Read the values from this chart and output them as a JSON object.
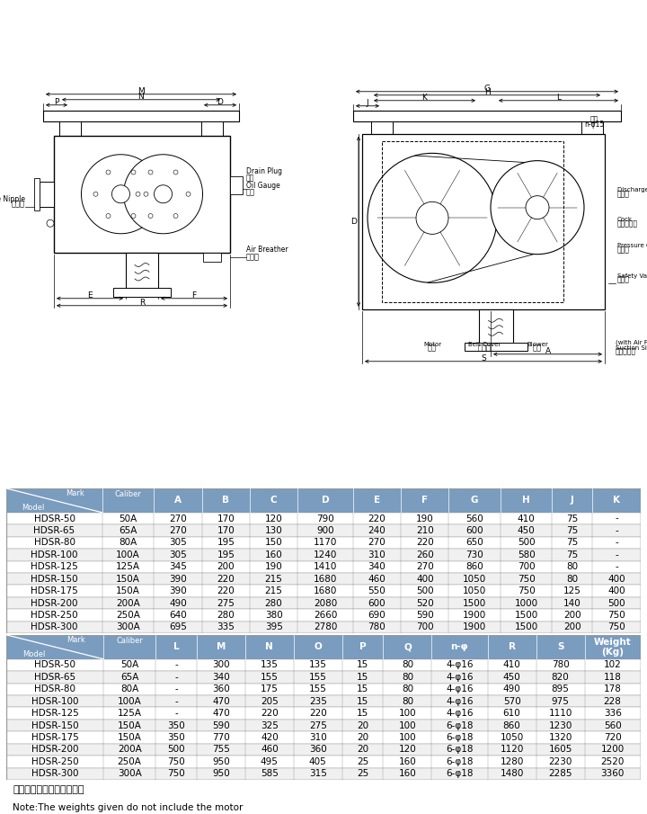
{
  "table1_data": [
    [
      "HDSR-50",
      "50A",
      "270",
      "170",
      "120",
      "790",
      "220",
      "190",
      "560",
      "410",
      "75",
      "-"
    ],
    [
      "HDSR-65",
      "65A",
      "270",
      "170",
      "130",
      "900",
      "240",
      "210",
      "600",
      "450",
      "75",
      "-"
    ],
    [
      "HDSR-80",
      "80A",
      "305",
      "195",
      "150",
      "1170",
      "270",
      "220",
      "650",
      "500",
      "75",
      "-"
    ],
    [
      "HDSR-100",
      "100A",
      "305",
      "195",
      "160",
      "1240",
      "310",
      "260",
      "730",
      "580",
      "75",
      "-"
    ],
    [
      "HDSR-125",
      "125A",
      "345",
      "200",
      "190",
      "1410",
      "340",
      "270",
      "860",
      "700",
      "80",
      "-"
    ],
    [
      "HDSR-150",
      "150A",
      "390",
      "220",
      "215",
      "1680",
      "460",
      "400",
      "1050",
      "750",
      "80",
      "400"
    ],
    [
      "HDSR-175",
      "150A",
      "390",
      "220",
      "215",
      "1680",
      "550",
      "500",
      "1050",
      "750",
      "125",
      "400"
    ],
    [
      "HDSR-200",
      "200A",
      "490",
      "275",
      "280",
      "2080",
      "600",
      "520",
      "1500",
      "1000",
      "140",
      "500"
    ],
    [
      "HDSR-250",
      "250A",
      "640",
      "280",
      "380",
      "2660",
      "690",
      "590",
      "1900",
      "1500",
      "200",
      "750"
    ],
    [
      "HDSR-300",
      "300A",
      "695",
      "335",
      "395",
      "2780",
      "780",
      "700",
      "1900",
      "1500",
      "200",
      "750"
    ]
  ],
  "table2_data": [
    [
      "HDSR-50",
      "50A",
      "-",
      "300",
      "135",
      "135",
      "15",
      "80",
      "4-φ16",
      "410",
      "780",
      "102"
    ],
    [
      "HDSR-65",
      "65A",
      "-",
      "340",
      "155",
      "155",
      "15",
      "80",
      "4-φ16",
      "450",
      "820",
      "118"
    ],
    [
      "HDSR-80",
      "80A",
      "-",
      "360",
      "175",
      "155",
      "15",
      "80",
      "4-φ16",
      "490",
      "895",
      "178"
    ],
    [
      "HDSR-100",
      "100A",
      "-",
      "470",
      "205",
      "235",
      "15",
      "80",
      "4-φ16",
      "570",
      "975",
      "228"
    ],
    [
      "HDSR-125",
      "125A",
      "-",
      "470",
      "220",
      "220",
      "15",
      "100",
      "4-φ16",
      "610",
      "1110",
      "336"
    ],
    [
      "HDSR-150",
      "150A",
      "350",
      "590",
      "325",
      "275",
      "20",
      "100",
      "6-φ18",
      "860",
      "1230",
      "560"
    ],
    [
      "HDSR-175",
      "150A",
      "350",
      "770",
      "420",
      "310",
      "20",
      "100",
      "6-φ18",
      "1050",
      "1320",
      "720"
    ],
    [
      "HDSR-200",
      "200A",
      "500",
      "755",
      "460",
      "360",
      "20",
      "120",
      "6-φ18",
      "1120",
      "1605",
      "1200"
    ],
    [
      "HDSR-250",
      "250A",
      "750",
      "950",
      "495",
      "405",
      "25",
      "160",
      "6-φ18",
      "1280",
      "2230",
      "2520"
    ],
    [
      "HDSR-300",
      "300A",
      "750",
      "950",
      "585",
      "315",
      "25",
      "160",
      "6-φ18",
      "1480",
      "2285",
      "3360"
    ]
  ],
  "table1_cols": [
    "Mark/Model",
    "Caliber",
    "A",
    "B",
    "C",
    "D",
    "E",
    "F",
    "G",
    "H",
    "J",
    "K"
  ],
  "table2_cols": [
    "Mark/Model",
    "Caliber",
    "L",
    "M",
    "N",
    "O",
    "P",
    "Q",
    "n-φ",
    "R",
    "S",
    "Weight(Kg)"
  ],
  "header_bg": "#7a9cbf",
  "note_cn": "注：重量中不包括电机重量",
  "note_en": "Note:The weights given do not include the motor"
}
